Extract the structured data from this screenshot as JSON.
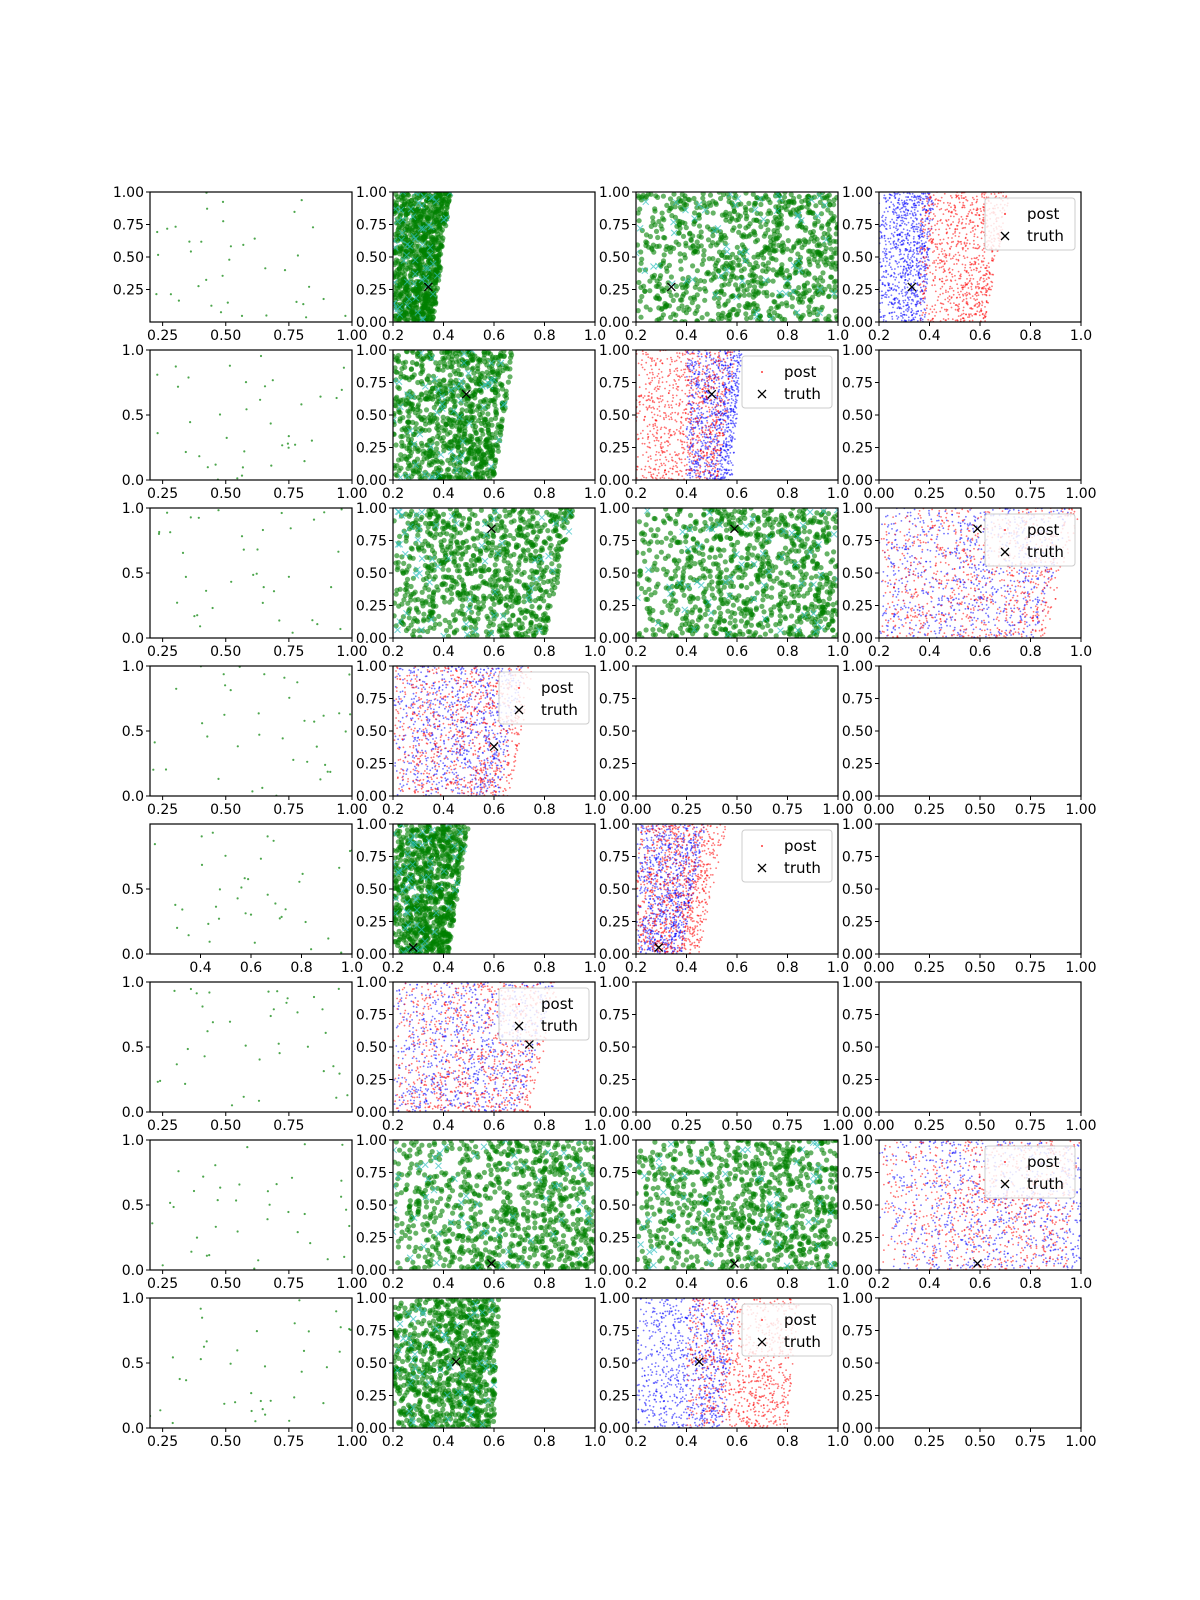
{
  "figure": {
    "title": "",
    "legend": {
      "post_label": "post",
      "truth_label": "truth"
    },
    "colors": {
      "green": "#008000",
      "cyan": "#2fbfbf",
      "red": "#ff0000",
      "blue": "#0000ff",
      "truth": "#000000",
      "axis": "#000000",
      "legend_edge": "#cccccc"
    }
  },
  "chart_data": [
    {
      "row": 0,
      "col": 0,
      "type": "scatter",
      "style": "sparse",
      "xlim": [
        0.2,
        1.0
      ],
      "ylim": [
        0.0,
        1.0
      ],
      "xticks": [
        "0.25",
        "0.50",
        "0.75",
        "1.00"
      ],
      "yticks": [
        "0.25",
        "0.50",
        "0.75",
        "1.00"
      ],
      "seed": 11,
      "legend": false
    },
    {
      "row": 0,
      "col": 1,
      "type": "scatter",
      "style": "green",
      "xlim": [
        0.2,
        1.0
      ],
      "ylim": [
        0.0,
        1.0
      ],
      "xticks": [
        "0.2",
        "0.4",
        "0.6",
        "0.8",
        "1.0"
      ],
      "yticks": [
        "0.00",
        "0.25",
        "0.50",
        "0.75",
        "1.00"
      ],
      "cloud": {
        "x_low": 0.2,
        "x_high_bottom": 0.36,
        "x_high_top": 0.43
      },
      "truth": [
        0.34,
        0.27
      ],
      "seed": 12,
      "legend": false
    },
    {
      "row": 0,
      "col": 2,
      "type": "scatter",
      "style": "green",
      "xlim": [
        0.2,
        1.0
      ],
      "ylim": [
        0.0,
        1.0
      ],
      "xticks": [
        "0.2",
        "0.4",
        "0.6",
        "0.8",
        "1.0"
      ],
      "yticks": [
        "0.00",
        "0.25",
        "0.50",
        "0.75",
        "1.00"
      ],
      "cloud": {
        "x_low": 0.2,
        "x_high_bottom": 1.0,
        "x_high_top": 1.0
      },
      "truth": [
        0.34,
        0.27
      ],
      "seed": 13,
      "legend": false
    },
    {
      "row": 0,
      "col": 3,
      "type": "scatter",
      "style": "redblue",
      "xlim": [
        0.2,
        1.0
      ],
      "ylim": [
        0.0,
        1.0
      ],
      "xticks": [
        "0.2",
        "0.4",
        "0.6",
        "0.8",
        "1.0"
      ],
      "yticks": [
        "0.00",
        "0.25",
        "0.50",
        "0.75",
        "1.00"
      ],
      "blue": {
        "x_low": 0.2,
        "x_high_bottom": 0.38,
        "x_high_top": 0.42
      },
      "red": {
        "x_low": 0.36,
        "x_high_bottom": 0.62,
        "x_high_top": 0.72
      },
      "truth": [
        0.33,
        0.27
      ],
      "seed": 14,
      "legend": true,
      "legend_pos": "upper right"
    },
    {
      "row": 1,
      "col": 0,
      "type": "scatter",
      "style": "sparse",
      "xlim": [
        0.2,
        1.0
      ],
      "ylim": [
        0.0,
        1.0
      ],
      "xticks": [
        "0.25",
        "0.50",
        "0.75",
        "1.00"
      ],
      "yticks": [
        "0.0",
        "0.5",
        "1.0"
      ],
      "seed": 21,
      "legend": false
    },
    {
      "row": 1,
      "col": 1,
      "type": "scatter",
      "style": "green",
      "xlim": [
        0.2,
        1.0
      ],
      "ylim": [
        0.0,
        1.0
      ],
      "xticks": [
        "0.2",
        "0.4",
        "0.6",
        "0.8",
        "1.0"
      ],
      "yticks": [
        "0.00",
        "0.25",
        "0.50",
        "0.75",
        "1.00"
      ],
      "cloud": {
        "x_low": 0.2,
        "x_high_bottom": 0.6,
        "x_high_top": 0.68
      },
      "truth": [
        0.49,
        0.66
      ],
      "seed": 22,
      "legend": false
    },
    {
      "row": 1,
      "col": 2,
      "type": "scatter",
      "style": "redblue",
      "xlim": [
        0.2,
        1.0
      ],
      "ylim": [
        0.0,
        1.0
      ],
      "xticks": [
        "0.2",
        "0.4",
        "0.6",
        "0.8",
        "1.0"
      ],
      "yticks": [
        "0.00",
        "0.25",
        "0.50",
        "0.75",
        "1.00"
      ],
      "red": {
        "x_low": 0.2,
        "x_high_bottom": 0.52,
        "x_high_top": 0.6
      },
      "blue": {
        "x_low": 0.4,
        "x_high_bottom": 0.58,
        "x_high_top": 0.62
      },
      "truth": [
        0.5,
        0.66
      ],
      "seed": 23,
      "legend": true,
      "legend_pos": "upper right"
    },
    {
      "row": 1,
      "col": 3,
      "type": "empty",
      "xlim": [
        0.0,
        1.0
      ],
      "ylim": [
        0.0,
        1.0
      ],
      "xticks": [
        "0.00",
        "0.25",
        "0.50",
        "0.75",
        "1.00"
      ],
      "yticks": [
        "0.00",
        "0.25",
        "0.50",
        "0.75",
        "1.00"
      ],
      "legend": false
    },
    {
      "row": 2,
      "col": 0,
      "type": "scatter",
      "style": "sparse",
      "xlim": [
        0.2,
        1.0
      ],
      "ylim": [
        0.0,
        1.0
      ],
      "xticks": [
        "0.25",
        "0.50",
        "0.75",
        "1.00"
      ],
      "yticks": [
        "0.0",
        "0.5",
        "1.0"
      ],
      "seed": 31,
      "legend": false
    },
    {
      "row": 2,
      "col": 1,
      "type": "scatter",
      "style": "green",
      "xlim": [
        0.2,
        1.0
      ],
      "ylim": [
        0.0,
        1.0
      ],
      "xticks": [
        "0.2",
        "0.4",
        "0.6",
        "0.8",
        "1.0"
      ],
      "yticks": [
        "0.00",
        "0.25",
        "0.50",
        "0.75",
        "1.00"
      ],
      "cloud": {
        "x_low": 0.2,
        "x_high_bottom": 0.8,
        "x_high_top": 0.92
      },
      "truth": [
        0.59,
        0.84
      ],
      "seed": 32,
      "legend": false
    },
    {
      "row": 2,
      "col": 2,
      "type": "scatter",
      "style": "green",
      "xlim": [
        0.2,
        1.0
      ],
      "ylim": [
        0.0,
        1.0
      ],
      "xticks": [
        "0.2",
        "0.4",
        "0.6",
        "0.8",
        "1.0"
      ],
      "yticks": [
        "0.00",
        "0.25",
        "0.50",
        "0.75",
        "1.00"
      ],
      "cloud": {
        "x_low": 0.2,
        "x_high_bottom": 1.0,
        "x_high_top": 1.0
      },
      "truth": [
        0.59,
        0.84
      ],
      "seed": 33,
      "legend": false
    },
    {
      "row": 2,
      "col": 3,
      "type": "scatter",
      "style": "redblue",
      "xlim": [
        0.2,
        1.0
      ],
      "ylim": [
        0.0,
        1.0
      ],
      "xticks": [
        "0.2",
        "0.4",
        "0.6",
        "0.8",
        "1.0"
      ],
      "yticks": [
        "0.00",
        "0.25",
        "0.50",
        "0.75",
        "1.00"
      ],
      "red": {
        "x_low": 0.2,
        "x_high_bottom": 0.86,
        "x_high_top": 1.0
      },
      "blue": {
        "x_low": 0.2,
        "x_high_bottom": 0.82,
        "x_high_top": 0.96
      },
      "truth": [
        0.59,
        0.84
      ],
      "seed": 34,
      "legend": true,
      "legend_pos": "upper right"
    },
    {
      "row": 3,
      "col": 0,
      "type": "scatter",
      "style": "sparse",
      "xlim": [
        0.2,
        1.0
      ],
      "ylim": [
        0.0,
        1.0
      ],
      "xticks": [
        "0.25",
        "0.50",
        "0.75",
        "1.00"
      ],
      "yticks": [
        "0.0",
        "0.5",
        "1.0"
      ],
      "seed": 41,
      "legend": false
    },
    {
      "row": 3,
      "col": 1,
      "type": "scatter",
      "style": "redblue",
      "xlim": [
        0.2,
        1.0
      ],
      "ylim": [
        0.0,
        1.0
      ],
      "xticks": [
        "0.2",
        "0.4",
        "0.6",
        "0.8",
        "1.0"
      ],
      "yticks": [
        "0.00",
        "0.25",
        "0.50",
        "0.75",
        "1.00"
      ],
      "red": {
        "x_low": 0.2,
        "x_high_bottom": 0.66,
        "x_high_top": 0.76
      },
      "blue": {
        "x_low": 0.2,
        "x_high_bottom": 0.62,
        "x_high_top": 0.72
      },
      "truth": [
        0.6,
        0.38
      ],
      "seed": 42,
      "legend": true,
      "legend_pos": "upper right"
    },
    {
      "row": 3,
      "col": 2,
      "type": "empty",
      "xlim": [
        0.0,
        1.0
      ],
      "ylim": [
        0.0,
        1.0
      ],
      "xticks": [
        "0.00",
        "0.25",
        "0.50",
        "0.75",
        "1.00"
      ],
      "yticks": [
        "0.00",
        "0.25",
        "0.50",
        "0.75",
        "1.00"
      ],
      "legend": false
    },
    {
      "row": 3,
      "col": 3,
      "type": "empty",
      "xlim": [
        0.0,
        1.0
      ],
      "ylim": [
        0.0,
        1.0
      ],
      "xticks": [
        "0.00",
        "0.25",
        "0.50",
        "0.75",
        "1.00"
      ],
      "yticks": [
        "0.00",
        "0.25",
        "0.50",
        "0.75",
        "1.00"
      ],
      "legend": false
    },
    {
      "row": 4,
      "col": 0,
      "type": "scatter",
      "style": "sparse",
      "xlim": [
        0.2,
        1.0
      ],
      "ylim": [
        0.0,
        1.0
      ],
      "xticks": [
        "0.4",
        "0.6",
        "0.8",
        "1.0"
      ],
      "yticks": [
        "0.0",
        "0.5"
      ],
      "seed": 51,
      "legend": false
    },
    {
      "row": 4,
      "col": 1,
      "type": "scatter",
      "style": "green",
      "xlim": [
        0.2,
        1.0
      ],
      "ylim": [
        0.0,
        1.0
      ],
      "xticks": [
        "0.2",
        "0.4",
        "0.6",
        "0.8",
        "1.0"
      ],
      "yticks": [
        "0.00",
        "0.25",
        "0.50",
        "0.75",
        "1.00"
      ],
      "cloud": {
        "x_low": 0.2,
        "x_high_bottom": 0.42,
        "x_high_top": 0.5
      },
      "truth": [
        0.28,
        0.05
      ],
      "seed": 52,
      "legend": false
    },
    {
      "row": 4,
      "col": 2,
      "type": "scatter",
      "style": "redblue",
      "xlim": [
        0.2,
        1.0
      ],
      "ylim": [
        0.0,
        1.0
      ],
      "xticks": [
        "0.2",
        "0.4",
        "0.6",
        "0.8",
        "1.0"
      ],
      "yticks": [
        "0.00",
        "0.25",
        "0.50",
        "0.75",
        "1.00"
      ],
      "red": {
        "x_low": 0.2,
        "x_high_bottom": 0.45,
        "x_high_top": 0.56
      },
      "blue": {
        "x_low": 0.2,
        "x_high_bottom": 0.38,
        "x_high_top": 0.48
      },
      "truth": [
        0.29,
        0.05
      ],
      "seed": 53,
      "legend": true,
      "legend_pos": "upper right"
    },
    {
      "row": 4,
      "col": 3,
      "type": "empty",
      "xlim": [
        0.0,
        1.0
      ],
      "ylim": [
        0.0,
        1.0
      ],
      "xticks": [
        "0.00",
        "0.25",
        "0.50",
        "0.75",
        "1.00"
      ],
      "yticks": [
        "0.00",
        "0.25",
        "0.50",
        "0.75",
        "1.00"
      ],
      "legend": false
    },
    {
      "row": 5,
      "col": 0,
      "type": "scatter",
      "style": "sparse",
      "xlim": [
        0.2,
        1.0
      ],
      "ylim": [
        0.0,
        1.0
      ],
      "xticks": [
        "0.25",
        "0.50",
        "0.75"
      ],
      "yticks": [
        "0.0",
        "0.5",
        "1.0"
      ],
      "seed": 61,
      "legend": false
    },
    {
      "row": 5,
      "col": 1,
      "type": "scatter",
      "style": "redblue",
      "xlim": [
        0.2,
        1.0
      ],
      "ylim": [
        0.0,
        1.0
      ],
      "xticks": [
        "0.2",
        "0.4",
        "0.6",
        "0.8",
        "1.0"
      ],
      "yticks": [
        "0.00",
        "0.25",
        "0.50",
        "0.75",
        "1.00"
      ],
      "red": {
        "x_low": 0.2,
        "x_high_bottom": 0.74,
        "x_high_top": 0.86
      },
      "blue": {
        "x_low": 0.2,
        "x_high_bottom": 0.7,
        "x_high_top": 0.84
      },
      "truth": [
        0.74,
        0.52
      ],
      "seed": 62,
      "legend": true,
      "legend_pos": "upper right"
    },
    {
      "row": 5,
      "col": 2,
      "type": "empty",
      "xlim": [
        0.0,
        1.0
      ],
      "ylim": [
        0.0,
        1.0
      ],
      "xticks": [
        "0.00",
        "0.25",
        "0.50",
        "0.75",
        "1.00"
      ],
      "yticks": [
        "0.00",
        "0.25",
        "0.50",
        "0.75",
        "1.00"
      ],
      "legend": false
    },
    {
      "row": 5,
      "col": 3,
      "type": "empty",
      "xlim": [
        0.0,
        1.0
      ],
      "ylim": [
        0.0,
        1.0
      ],
      "xticks": [
        "0.00",
        "0.25",
        "0.50",
        "0.75",
        "1.00"
      ],
      "yticks": [
        "0.00",
        "0.25",
        "0.50",
        "0.75",
        "1.00"
      ],
      "legend": false
    },
    {
      "row": 6,
      "col": 0,
      "type": "scatter",
      "style": "sparse",
      "xlim": [
        0.2,
        1.0
      ],
      "ylim": [
        0.0,
        1.0
      ],
      "xticks": [
        "0.25",
        "0.50",
        "0.75",
        "1.00"
      ],
      "yticks": [
        "0.0",
        "0.5",
        "1.0"
      ],
      "seed": 71,
      "legend": false
    },
    {
      "row": 6,
      "col": 1,
      "type": "scatter",
      "style": "green",
      "xlim": [
        0.2,
        1.0
      ],
      "ylim": [
        0.0,
        1.0
      ],
      "xticks": [
        "0.2",
        "0.4",
        "0.6",
        "0.8",
        "1.0"
      ],
      "yticks": [
        "0.00",
        "0.25",
        "0.50",
        "0.75",
        "1.00"
      ],
      "cloud": {
        "x_low": 0.2,
        "x_high_bottom": 1.0,
        "x_high_top": 1.0
      },
      "truth": [
        0.59,
        0.05
      ],
      "seed": 72,
      "legend": false
    },
    {
      "row": 6,
      "col": 2,
      "type": "scatter",
      "style": "green",
      "xlim": [
        0.2,
        1.0
      ],
      "ylim": [
        0.0,
        1.0
      ],
      "xticks": [
        "0.2",
        "0.4",
        "0.6",
        "0.8",
        "1.0"
      ],
      "yticks": [
        "0.00",
        "0.25",
        "0.50",
        "0.75",
        "1.00"
      ],
      "cloud": {
        "x_low": 0.2,
        "x_high_bottom": 1.0,
        "x_high_top": 1.0
      },
      "truth": [
        0.59,
        0.05
      ],
      "seed": 73,
      "legend": false
    },
    {
      "row": 6,
      "col": 3,
      "type": "scatter",
      "style": "redblue",
      "xlim": [
        0.2,
        1.0
      ],
      "ylim": [
        0.0,
        1.0
      ],
      "xticks": [
        "0.2",
        "0.4",
        "0.6",
        "0.8",
        "1.0"
      ],
      "yticks": [
        "0.00",
        "0.25",
        "0.50",
        "0.75",
        "1.00"
      ],
      "red": {
        "x_low": 0.2,
        "x_high_bottom": 0.94,
        "x_high_top": 1.0
      },
      "blue": {
        "x_low": 0.2,
        "x_high_bottom": 1.0,
        "x_high_top": 1.0
      },
      "truth": [
        0.59,
        0.05
      ],
      "seed": 74,
      "legend": true,
      "legend_pos": "upper right"
    },
    {
      "row": 7,
      "col": 0,
      "type": "scatter",
      "style": "sparse",
      "xlim": [
        0.2,
        1.0
      ],
      "ylim": [
        0.0,
        1.0
      ],
      "xticks": [
        "0.25",
        "0.50",
        "0.75",
        "1.00"
      ],
      "yticks": [
        "0.0",
        "0.5",
        "1.0"
      ],
      "seed": 81,
      "legend": false
    },
    {
      "row": 7,
      "col": 1,
      "type": "scatter",
      "style": "green",
      "xlim": [
        0.2,
        1.0
      ],
      "ylim": [
        0.0,
        1.0
      ],
      "xticks": [
        "0.2",
        "0.4",
        "0.6",
        "0.8",
        "1.0"
      ],
      "yticks": [
        "0.00",
        "0.25",
        "0.50",
        "0.75",
        "1.00"
      ],
      "cloud": {
        "x_low": 0.2,
        "x_high_bottom": 0.6,
        "x_high_top": 0.62
      },
      "truth": [
        0.45,
        0.51
      ],
      "seed": 82,
      "legend": false
    },
    {
      "row": 7,
      "col": 2,
      "type": "scatter",
      "style": "redblue",
      "xlim": [
        0.2,
        1.0
      ],
      "ylim": [
        0.0,
        1.0
      ],
      "xticks": [
        "0.2",
        "0.4",
        "0.6",
        "0.8",
        "1.0"
      ],
      "yticks": [
        "0.00",
        "0.25",
        "0.50",
        "0.75",
        "1.00"
      ],
      "blue": {
        "x_low": 0.2,
        "x_high_bottom": 0.55,
        "x_high_top": 0.6
      },
      "red": {
        "x_low": 0.4,
        "x_high_bottom": 0.8,
        "x_high_top": 0.85
      },
      "truth": [
        0.45,
        0.51
      ],
      "seed": 83,
      "legend": true,
      "legend_pos": "upper right"
    },
    {
      "row": 7,
      "col": 3,
      "type": "empty",
      "xlim": [
        0.0,
        1.0
      ],
      "ylim": [
        0.0,
        1.0
      ],
      "xticks": [
        "0.00",
        "0.25",
        "0.50",
        "0.75",
        "1.00"
      ],
      "yticks": [
        "0.00",
        "0.25",
        "0.50",
        "0.75",
        "1.00"
      ],
      "legend": false
    }
  ]
}
